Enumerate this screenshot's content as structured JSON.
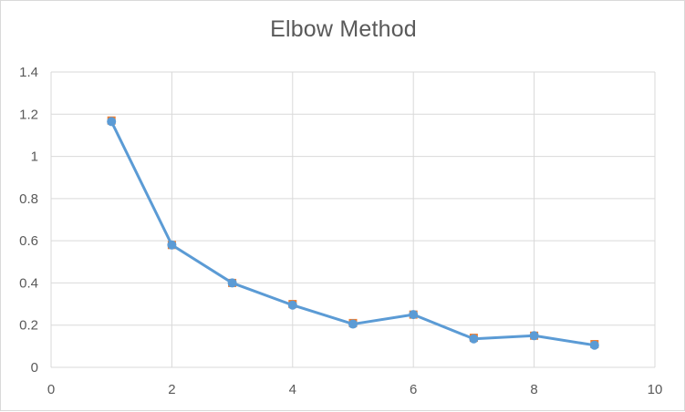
{
  "chart_data": {
    "type": "scatter",
    "title": "Elbow Method",
    "xlabel": "",
    "ylabel": "",
    "xlim": [
      0,
      10
    ],
    "ylim": [
      0,
      1.4
    ],
    "x_ticks": [
      0,
      2,
      4,
      6,
      8,
      10
    ],
    "y_ticks": [
      0,
      0.2,
      0.4,
      0.6,
      0.8,
      1,
      1.2,
      1.4
    ],
    "grid": true,
    "legend": "none",
    "series": [
      {
        "marker": "square",
        "color": "#ed7d31",
        "line": false,
        "x": [
          1,
          2,
          3,
          4,
          5,
          6,
          7,
          8,
          9
        ],
        "y": [
          1.17,
          0.58,
          0.4,
          0.3,
          0.21,
          0.25,
          0.14,
          0.15,
          0.11
        ]
      },
      {
        "marker": "circle",
        "color": "#5b9bd5",
        "line": true,
        "x": [
          1,
          2,
          3,
          4,
          5,
          6,
          7,
          8,
          9
        ],
        "y": [
          1.165,
          0.58,
          0.4,
          0.295,
          0.205,
          0.25,
          0.135,
          0.15,
          0.105
        ]
      }
    ]
  }
}
